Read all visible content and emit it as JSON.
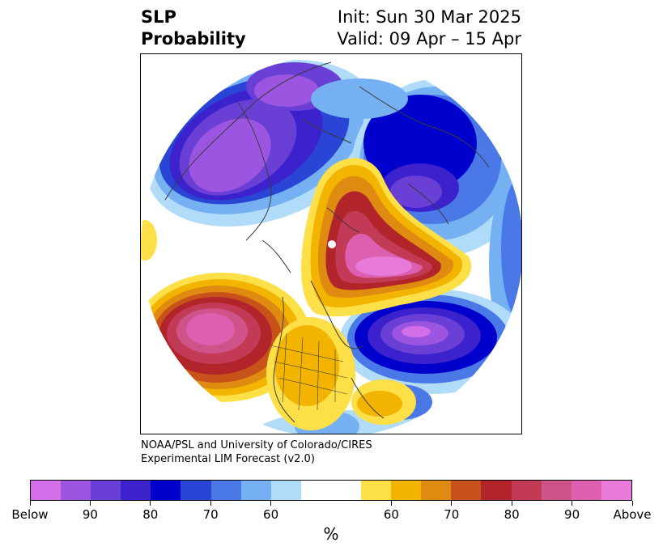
{
  "title": {
    "left_line1": "SLP",
    "left_line2": "Probability",
    "right_line1": "Init: Sun 30 Mar 2025",
    "right_line2": "Valid: 09 Apr – 15 Apr"
  },
  "credit": {
    "line1": "NOAA/PSL and University of Colorado/CIRES",
    "line2": "Experimental LIM Forecast (v2.0)"
  },
  "colorbar": {
    "colors": [
      "#d46ee8",
      "#9b55e0",
      "#6a3fd6",
      "#3b22cc",
      "#0000cc",
      "#2a45d6",
      "#4a78e6",
      "#74b0f2",
      "#b0dcfa",
      "#ffffff",
      "#ffffff",
      "#fde047",
      "#f3b400",
      "#df8a10",
      "#c8531a",
      "#b0242a",
      "#c23a55",
      "#cf5288",
      "#dd60b0",
      "#e87ada"
    ],
    "tick_labels": [
      "Below",
      "90",
      "80",
      "70",
      "60",
      "60",
      "70",
      "80",
      "90",
      "Above"
    ],
    "unit": "%"
  },
  "map": {
    "projection": "polar stereographic (North Pole)",
    "variable": "sea level pressure tercile probability",
    "features": [
      "coastlines",
      "country borders",
      "US states"
    ]
  }
}
